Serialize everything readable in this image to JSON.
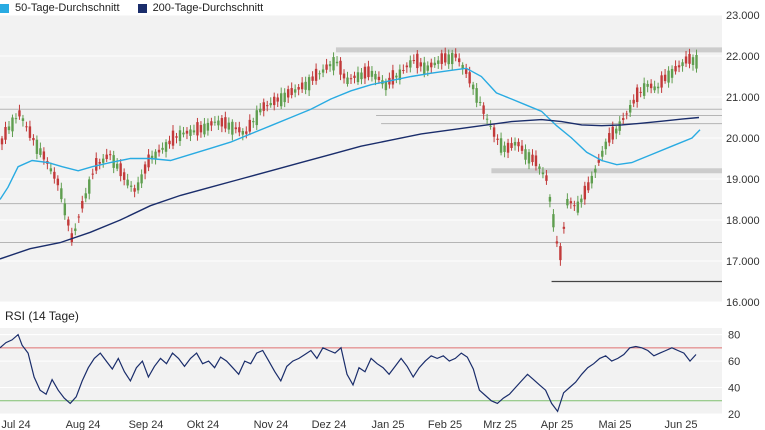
{
  "legend": {
    "items": [
      {
        "label": "50-Tage-Durchschnitt",
        "color": "#29abe2"
      },
      {
        "label": "200-Tage-Durchschnitt",
        "color": "#1a2d6b"
      }
    ]
  },
  "rsi_panel": {
    "title": "RSI (14 Tage)"
  },
  "colors": {
    "up": "#5f9e4f",
    "down": "#c23a3a",
    "sma50": "#29abe2",
    "sma200": "#1a2d6b",
    "rsi": "#1a2d6b",
    "plot_bg": "#f2f2f2",
    "upper_band": "#e07070",
    "lower_band": "#7fbf6f"
  },
  "chart_data": [
    {
      "type": "candlestick",
      "ylim": [
        16000,
        23000
      ],
      "yticks": [
        "16.000",
        "17.000",
        "18.000",
        "19.000",
        "20.000",
        "21.000",
        "22.000",
        "23.000"
      ],
      "ytick_values": [
        16000,
        17000,
        18000,
        19000,
        20000,
        21000,
        22000,
        23000
      ],
      "xticks": [
        "Jul 24",
        "Aug 24",
        "Sep 24",
        "Okt 24",
        "Nov 24",
        "Dez 24",
        "Jan 25",
        "Feb 25",
        "Mrz 25",
        "Apr 25",
        "Mai 25",
        "Jun 25"
      ],
      "series": [
        {
          "name": "50-Tage-Durchschnitt",
          "points": [
            [
              0,
              18500
            ],
            [
              8,
              18800
            ],
            [
              18,
              19300
            ],
            [
              32,
              19450
            ],
            [
              48,
              19400
            ],
            [
              62,
              19300
            ],
            [
              78,
              19200
            ],
            [
              92,
              19300
            ],
            [
              110,
              19400
            ],
            [
              130,
              19500
            ],
            [
              150,
              19500
            ],
            [
              170,
              19450
            ],
            [
              190,
              19600
            ],
            [
              210,
              19750
            ],
            [
              230,
              19900
            ],
            [
              250,
              20100
            ],
            [
              270,
              20300
            ],
            [
              290,
              20500
            ],
            [
              310,
              20700
            ],
            [
              330,
              20950
            ],
            [
              350,
              21150
            ],
            [
              370,
              21300
            ],
            [
              390,
              21400
            ],
            [
              410,
              21500
            ],
            [
              430,
              21580
            ],
            [
              450,
              21650
            ],
            [
              465,
              21700
            ],
            [
              480,
              21500
            ],
            [
              495,
              21100
            ],
            [
              510,
              20950
            ],
            [
              525,
              20800
            ],
            [
              540,
              20650
            ],
            [
              555,
              20300
            ],
            [
              570,
              20000
            ],
            [
              585,
              19650
            ],
            [
              600,
              19450
            ],
            [
              615,
              19350
            ],
            [
              630,
              19400
            ],
            [
              650,
              19600
            ],
            [
              670,
              19800
            ],
            [
              690,
              20000
            ],
            [
              698,
              20200
            ]
          ]
        },
        {
          "name": "200-Tage-Durchschnitt",
          "points": [
            [
              0,
              17050
            ],
            [
              30,
              17300
            ],
            [
              60,
              17450
            ],
            [
              90,
              17700
            ],
            [
              120,
              18000
            ],
            [
              150,
              18350
            ],
            [
              180,
              18600
            ],
            [
              210,
              18800
            ],
            [
              240,
              19000
            ],
            [
              270,
              19200
            ],
            [
              300,
              19400
            ],
            [
              330,
              19600
            ],
            [
              360,
              19800
            ],
            [
              390,
              19950
            ],
            [
              420,
              20100
            ],
            [
              450,
              20200
            ],
            [
              480,
              20300
            ],
            [
              510,
              20400
            ],
            [
              540,
              20450
            ],
            [
              560,
              20400
            ],
            [
              580,
              20320
            ],
            [
              600,
              20300
            ],
            [
              620,
              20320
            ],
            [
              640,
              20360
            ],
            [
              660,
              20410
            ],
            [
              680,
              20460
            ],
            [
              697,
              20500
            ]
          ]
        }
      ],
      "horizontal_levels": [
        {
          "value": 22150,
          "from": 335,
          "style": "band"
        },
        {
          "value": 20700,
          "from": 0,
          "style": "thin"
        },
        {
          "value": 20550,
          "from": 375,
          "style": "thin"
        },
        {
          "value": 20350,
          "from": 380,
          "style": "thin"
        },
        {
          "value": 19200,
          "from": 490,
          "style": "band"
        },
        {
          "value": 18400,
          "from": 0,
          "style": "thin"
        },
        {
          "value": 17450,
          "from": 0,
          "style": "thin"
        },
        {
          "value": 16500,
          "from": 550,
          "style": "dark"
        }
      ]
    },
    {
      "type": "line",
      "name": "RSI (14 Tage)",
      "ylim": [
        20,
        85
      ],
      "yticks": [
        "20",
        "40",
        "60",
        "80"
      ],
      "ytick_values": [
        20,
        40,
        60,
        80
      ],
      "bands": [
        70,
        30
      ],
      "points": [
        [
          0,
          70
        ],
        [
          6,
          74
        ],
        [
          12,
          76
        ],
        [
          18,
          80
        ],
        [
          22,
          72
        ],
        [
          28,
          66
        ],
        [
          34,
          48
        ],
        [
          40,
          38
        ],
        [
          46,
          35
        ],
        [
          52,
          46
        ],
        [
          58,
          38
        ],
        [
          64,
          32
        ],
        [
          70,
          28
        ],
        [
          76,
          33
        ],
        [
          82,
          45
        ],
        [
          88,
          55
        ],
        [
          94,
          62
        ],
        [
          100,
          66
        ],
        [
          106,
          60
        ],
        [
          112,
          54
        ],
        [
          118,
          62
        ],
        [
          124,
          52
        ],
        [
          130,
          45
        ],
        [
          136,
          55
        ],
        [
          142,
          60
        ],
        [
          148,
          48
        ],
        [
          154,
          56
        ],
        [
          160,
          62
        ],
        [
          166,
          58
        ],
        [
          172,
          66
        ],
        [
          178,
          62
        ],
        [
          184,
          56
        ],
        [
          190,
          62
        ],
        [
          196,
          66
        ],
        [
          202,
          58
        ],
        [
          208,
          60
        ],
        [
          214,
          55
        ],
        [
          220,
          63
        ],
        [
          226,
          60
        ],
        [
          232,
          55
        ],
        [
          238,
          50
        ],
        [
          244,
          60
        ],
        [
          250,
          58
        ],
        [
          256,
          66
        ],
        [
          262,
          68
        ],
        [
          268,
          60
        ],
        [
          274,
          52
        ],
        [
          280,
          45
        ],
        [
          286,
          56
        ],
        [
          292,
          60
        ],
        [
          298,
          62
        ],
        [
          304,
          65
        ],
        [
          310,
          68
        ],
        [
          316,
          62
        ],
        [
          322,
          70
        ],
        [
          328,
          68
        ],
        [
          334,
          66
        ],
        [
          340,
          70
        ],
        [
          346,
          50
        ],
        [
          352,
          42
        ],
        [
          358,
          55
        ],
        [
          364,
          52
        ],
        [
          370,
          62
        ],
        [
          376,
          58
        ],
        [
          382,
          55
        ],
        [
          388,
          50
        ],
        [
          394,
          56
        ],
        [
          400,
          62
        ],
        [
          406,
          56
        ],
        [
          412,
          48
        ],
        [
          418,
          55
        ],
        [
          424,
          60
        ],
        [
          430,
          64
        ],
        [
          436,
          62
        ],
        [
          442,
          64
        ],
        [
          448,
          60
        ],
        [
          454,
          62
        ],
        [
          460,
          66
        ],
        [
          466,
          63
        ],
        [
          472,
          54
        ],
        [
          478,
          38
        ],
        [
          484,
          34
        ],
        [
          490,
          30
        ],
        [
          496,
          28
        ],
        [
          502,
          32
        ],
        [
          508,
          35
        ],
        [
          514,
          40
        ],
        [
          520,
          45
        ],
        [
          526,
          50
        ],
        [
          532,
          46
        ],
        [
          538,
          42
        ],
        [
          544,
          38
        ],
        [
          550,
          28
        ],
        [
          556,
          22
        ],
        [
          562,
          36
        ],
        [
          568,
          40
        ],
        [
          574,
          44
        ],
        [
          580,
          50
        ],
        [
          586,
          55
        ],
        [
          592,
          58
        ],
        [
          598,
          62
        ],
        [
          604,
          64
        ],
        [
          610,
          60
        ],
        [
          616,
          62
        ],
        [
          622,
          65
        ],
        [
          628,
          70
        ],
        [
          634,
          71
        ],
        [
          640,
          70
        ],
        [
          646,
          68
        ],
        [
          652,
          64
        ],
        [
          658,
          66
        ],
        [
          664,
          68
        ],
        [
          670,
          70
        ],
        [
          676,
          68
        ],
        [
          682,
          66
        ],
        [
          688,
          60
        ],
        [
          694,
          65
        ]
      ]
    }
  ]
}
